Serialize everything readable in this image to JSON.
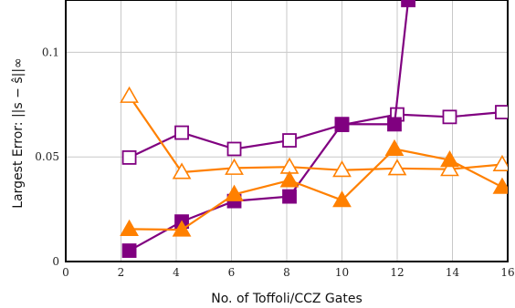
{
  "chart_data": {
    "type": "line",
    "xlabel": "No. of Toffoli/CCZ Gates",
    "ylabel": "Largest Error: ||s − ŝ||∞",
    "xlim": [
      0,
      16
    ],
    "ylim": [
      0,
      0.125
    ],
    "xticks": [
      0,
      2,
      4,
      6,
      8,
      10,
      12,
      14,
      16
    ],
    "xtick_labels": [
      "0",
      "2",
      "4",
      "6",
      "8",
      "10",
      "12",
      "14",
      "16"
    ],
    "yticks": [
      0,
      0.05,
      0.1
    ],
    "ytick_labels": [
      "0",
      "0.05",
      "0.1"
    ],
    "grid": true,
    "legend": "none",
    "series": [
      {
        "color": "#800080",
        "marker": "square-open",
        "x": [
          2.3,
          4.2,
          6.1,
          8.1,
          10.0,
          12.0,
          13.9,
          15.8
        ],
        "y": [
          0.0497,
          0.0616,
          0.0538,
          0.0579,
          0.0653,
          0.0703,
          0.0691,
          0.0714
        ]
      },
      {
        "color": "#800080",
        "marker": "square-filled",
        "x": [
          2.3,
          4.2,
          6.1,
          8.1,
          10.0,
          11.9,
          12.4
        ],
        "y": [
          0.0052,
          0.0191,
          0.0289,
          0.0311,
          0.0657,
          0.0656,
          0.125
        ]
      },
      {
        "color": "#ff8000",
        "marker": "triangle-open",
        "x": [
          2.3,
          4.2,
          6.1,
          8.1,
          10.0,
          12.0,
          13.9,
          15.8
        ],
        "y": [
          0.0791,
          0.0427,
          0.0447,
          0.0452,
          0.0437,
          0.0445,
          0.0441,
          0.0464
        ]
      },
      {
        "color": "#ff8000",
        "marker": "triangle-filled",
        "x": [
          2.3,
          4.2,
          6.1,
          8.1,
          10.0,
          11.9,
          13.9,
          15.8
        ],
        "y": [
          0.0155,
          0.0152,
          0.0321,
          0.0388,
          0.0293,
          0.0538,
          0.0485,
          0.0356
        ]
      }
    ]
  }
}
